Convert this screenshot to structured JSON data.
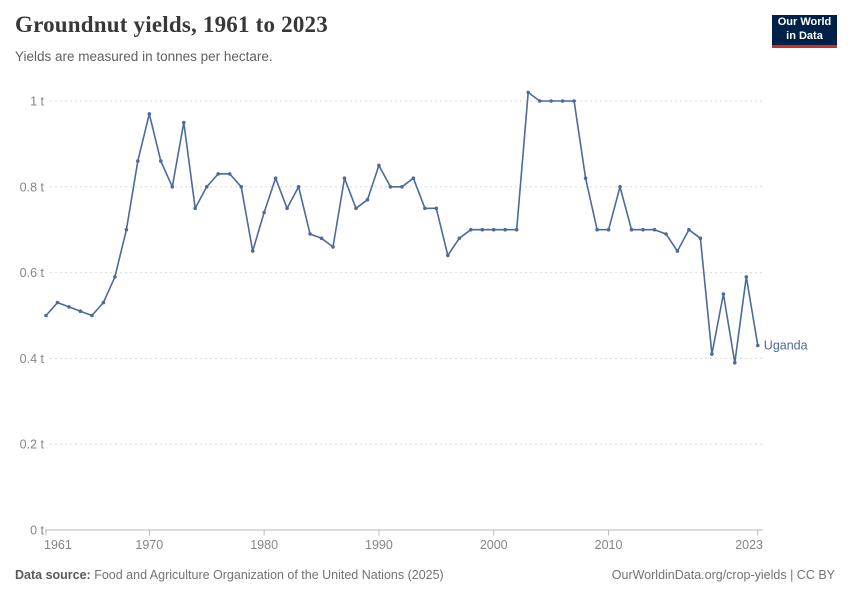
{
  "header": {
    "title": "Groundnut yields, 1961 to 2023",
    "subtitle": "Yields are measured in tonnes per hectare.",
    "logo_line1": "Our World",
    "logo_line2": "in Data"
  },
  "chart_data": {
    "type": "line",
    "title": "Groundnut yields, 1961 to 2023",
    "ylabel": "tonnes per hectare",
    "xlabel": "",
    "grid": "horizontal-dashed",
    "legend_position": "end-of-line-label",
    "xlim": [
      1961,
      2023
    ],
    "ylim": [
      0,
      1.05
    ],
    "x_ticks": [
      1961,
      1970,
      1980,
      1990,
      2000,
      2010,
      2023
    ],
    "y_ticks": [
      {
        "value": 0,
        "label": "0 t"
      },
      {
        "value": 0.2,
        "label": "0.2 t"
      },
      {
        "value": 0.4,
        "label": "0.4 t"
      },
      {
        "value": 0.6,
        "label": "0.6 t"
      },
      {
        "value": 0.8,
        "label": "0.8 t"
      },
      {
        "value": 1,
        "label": "1 t"
      }
    ],
    "series": [
      {
        "name": "Uganda",
        "color": "#4c6a9c",
        "x": [
          1961,
          1962,
          1963,
          1964,
          1965,
          1966,
          1967,
          1968,
          1969,
          1970,
          1971,
          1972,
          1973,
          1974,
          1975,
          1976,
          1977,
          1978,
          1979,
          1980,
          1981,
          1982,
          1983,
          1984,
          1985,
          1986,
          1987,
          1988,
          1989,
          1990,
          1991,
          1992,
          1993,
          1994,
          1995,
          1996,
          1997,
          1998,
          1999,
          2000,
          2001,
          2002,
          2003,
          2004,
          2005,
          2006,
          2007,
          2008,
          2009,
          2010,
          2011,
          2012,
          2013,
          2014,
          2015,
          2016,
          2017,
          2018,
          2019,
          2020,
          2021,
          2022,
          2023
        ],
        "values": [
          0.5,
          0.53,
          0.52,
          0.51,
          0.5,
          0.53,
          0.59,
          0.7,
          0.86,
          0.97,
          0.86,
          0.8,
          0.95,
          0.75,
          0.8,
          0.83,
          0.83,
          0.8,
          0.65,
          0.74,
          0.82,
          0.75,
          0.8,
          0.69,
          0.68,
          0.66,
          0.82,
          0.75,
          0.77,
          0.85,
          0.8,
          0.8,
          0.82,
          0.75,
          0.75,
          0.64,
          0.68,
          0.7,
          0.7,
          0.7,
          0.7,
          0.7,
          1.02,
          1.0,
          1.0,
          1.0,
          1.0,
          0.82,
          0.7,
          0.7,
          0.8,
          0.7,
          0.7,
          0.7,
          0.69,
          0.65,
          0.7,
          0.68,
          0.41,
          0.55,
          0.39,
          0.59,
          0.43
        ]
      }
    ],
    "colors": {
      "line": "#4c6a9c",
      "grid": "#dadada",
      "axis": "#b9b9b9",
      "tick_text": "#858585"
    }
  },
  "footer": {
    "datasource_label": "Data source:",
    "datasource_text": " Food and Agriculture Organization of the United Nations (2025)",
    "credit": "OurWorldinData.org/crop-yields | CC BY"
  }
}
